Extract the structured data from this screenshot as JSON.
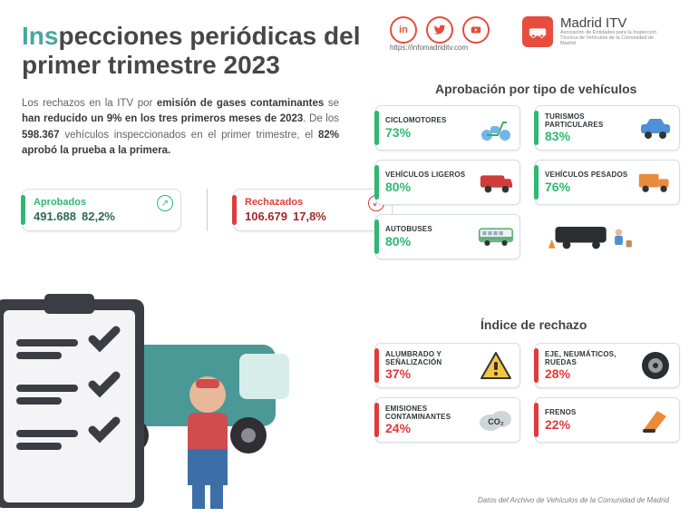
{
  "title": {
    "prefix": "Ins",
    "rest": "pecciones periódicas del primer trimestre 2023"
  },
  "social": {
    "url": "https://infomadriditv.com"
  },
  "brand": {
    "name": "Madrid ITV",
    "sub": "Asociación de Entidades para la Inspección Técnica de Vehículos de la Comunidad de Madrid"
  },
  "intro": "Los rechazos en la ITV por <b>emisión de gases contaminantes</b> se <b>han reducido un 9% en los tres primeros meses de 2023</b>. De los <b>598.367</b> vehículos inspeccionados en el primer trimestre, el <b>82% aprobó la prueba a la primera.</b>",
  "pills": {
    "approved": {
      "label": "Aprobados",
      "count": "491.688",
      "pct": "82,2%",
      "arrow": "↗"
    },
    "rejected": {
      "label": "Rechazados",
      "count": "106.679",
      "pct": "17,8%",
      "arrow": "↙"
    }
  },
  "sec1_title": "Aprobación por tipo de vehículos",
  "sec2_title": "Índice de rechazo",
  "approval": [
    {
      "label": "CICLOMOTORES",
      "value": "73%",
      "icon": "scooter",
      "color": "#6fb7e8"
    },
    {
      "label": "TURISMOS PARTICULARES",
      "value": "83%",
      "icon": "car",
      "color": "#4f8fd6"
    },
    {
      "label": "VEHÍCULOS LIGEROS",
      "value": "80%",
      "icon": "van",
      "color": "#d03c3c"
    },
    {
      "label": "VEHÍCULOS PESADOS",
      "value": "76%",
      "icon": "truck",
      "color": "#e98b3a"
    },
    {
      "label": "AUTOBUSES",
      "value": "80%",
      "icon": "bus",
      "color": "#5fb37a"
    }
  ],
  "mechanic_caption": "",
  "rejects": [
    {
      "label": "ALUMBRADO Y SEÑALIZACIÓN",
      "value": "37%",
      "icon": "warn"
    },
    {
      "label": "EJE, NEUMÁTICOS, RUEDAS",
      "value": "28%",
      "icon": "tire"
    },
    {
      "label": "EMISIONES CONTAMINANTES",
      "value": "24%",
      "icon": "co2"
    },
    {
      "label": "FRENOS",
      "value": "22%",
      "icon": "brake"
    }
  ],
  "source": "Datos del Archivo de Vehículos de la Comunidad de Madrid",
  "colors": {
    "green": "#2eb872",
    "red": "#e03b3b",
    "teal": "#48a7a0"
  }
}
